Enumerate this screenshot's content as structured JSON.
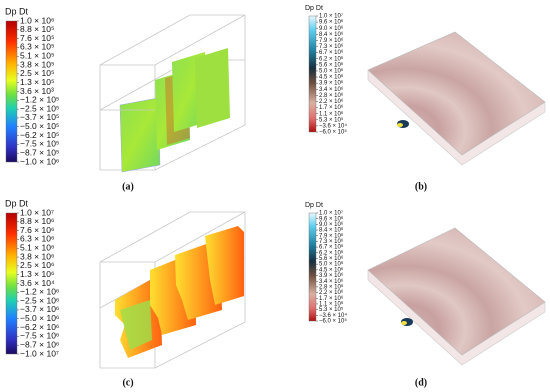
{
  "panels": [
    {
      "caption": "(a)",
      "colorbar_title": "Dp Dt",
      "colorbar_labels": [
        "1.0 × 10⁶",
        "8.8 × 10⁵",
        "7.6 × 10⁵",
        "6.3 × 10⁵",
        "5.1 × 10⁵",
        "3.8 × 10⁵",
        "2.5 × 10⁵",
        "1.3 × 10⁵",
        "3.6 × 10³",
        "−1.2 × 10⁵",
        "−2.5 × 10⁵",
        "−3.7 × 10⁵",
        "−5.0 × 10⁵",
        "−6.2 × 10⁵",
        "−7.5 × 10⁵",
        "−8.7 × 10⁵",
        "−1.0 × 10⁶"
      ]
    },
    {
      "caption": "(b)",
      "colorbar_title": "Dp Dt",
      "colorbar_labels": [
        "1.0 × 10⁷",
        "9.6 × 10⁶",
        "9.0 × 10⁶",
        "8.4 × 10⁶",
        "7.9 × 10⁶",
        "7.3 × 10⁶",
        "6.7 × 10⁶",
        "6.2 × 10⁶",
        "5.6 × 10⁶",
        "5.0 × 10⁶",
        "4.5 × 10⁶",
        "3.9 × 10⁶",
        "3.4 × 10⁶",
        "2.8 × 10⁶",
        "2.2 × 10⁶",
        "1.7 × 10⁶",
        "1.1 × 10⁶",
        "5.3 × 10⁵",
        "−3.6 × 10⁴",
        "−6.0 × 10⁵"
      ]
    },
    {
      "caption": "(c)",
      "colorbar_title": "Dp Dt",
      "colorbar_labels": [
        "1.0 × 10⁷",
        "8.8 × 10⁶",
        "7.6 × 10⁶",
        "6.3 × 10⁶",
        "5.1 × 10⁶",
        "3.8 × 10⁶",
        "2.5 × 10⁶",
        "1.3 × 10⁶",
        "3.6 × 10⁴",
        "−1.2 × 10⁶",
        "−2.5 × 10⁶",
        "−3.7 × 10⁶",
        "−5.0 × 10⁶",
        "−6.2 × 10⁶",
        "−7.5 × 10⁶",
        "−8.7 × 10⁶",
        "−1.0 × 10⁷"
      ]
    },
    {
      "caption": "(d)",
      "colorbar_title": "Dp Dt",
      "colorbar_labels": [
        "1.0 × 10⁷",
        "9.6 × 10⁶",
        "9.0 × 10⁶",
        "8.4 × 10⁶",
        "7.9 × 10⁶",
        "7.3 × 10⁶",
        "6.7 × 10⁶",
        "6.2 × 10⁶",
        "5.6 × 10⁶",
        "5.0 × 10⁶",
        "4.5 × 10⁶",
        "3.9 × 10⁶",
        "3.4 × 10⁶",
        "2.8 × 10⁶",
        "2.2 × 10⁶",
        "1.7 × 10⁶",
        "1.1 × 10⁶",
        "5.3 × 10⁵",
        "−3.6 × 10⁴",
        "−6.0 × 10⁵"
      ]
    }
  ]
}
